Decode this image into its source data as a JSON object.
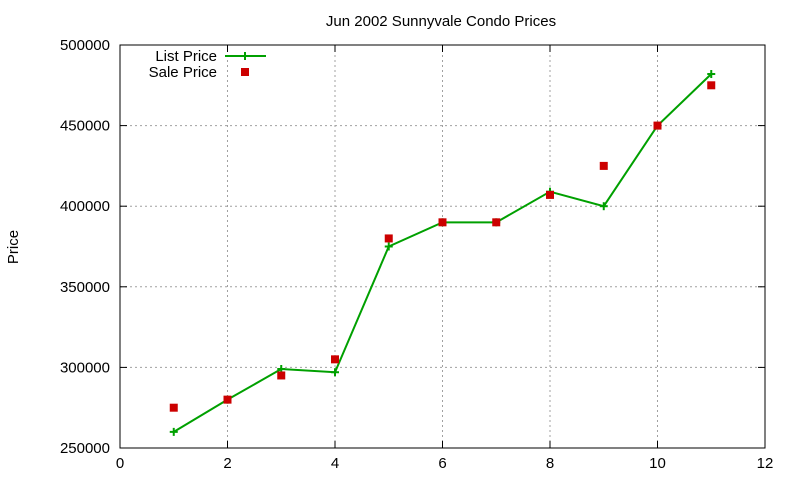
{
  "chart_data": {
    "type": "line",
    "title": "Jun 2002 Sunnyvale Condo Prices",
    "xlabel": "",
    "ylabel": "Price",
    "xlim": [
      0,
      12
    ],
    "ylim": [
      250000,
      500000
    ],
    "x_ticks": [
      0,
      2,
      4,
      6,
      8,
      10,
      12
    ],
    "y_ticks": [
      250000,
      300000,
      350000,
      400000,
      450000,
      500000
    ],
    "grid": true,
    "legend_position": "top-left",
    "series": [
      {
        "name": "List Price",
        "style": "line+cross",
        "color": "#00a000",
        "x": [
          1,
          2,
          3,
          4,
          5,
          6,
          7,
          8,
          9,
          10,
          11
        ],
        "y": [
          260000,
          280000,
          299000,
          297000,
          375000,
          390000,
          390000,
          409000,
          400000,
          450000,
          482000
        ]
      },
      {
        "name": "Sale Price",
        "style": "square-points",
        "color": "#cc0000",
        "x": [
          1,
          2,
          3,
          4,
          5,
          6,
          7,
          8,
          9,
          10,
          11
        ],
        "y": [
          275000,
          280000,
          295000,
          305000,
          380000,
          390000,
          390000,
          407000,
          425000,
          450000,
          475000
        ]
      }
    ]
  }
}
